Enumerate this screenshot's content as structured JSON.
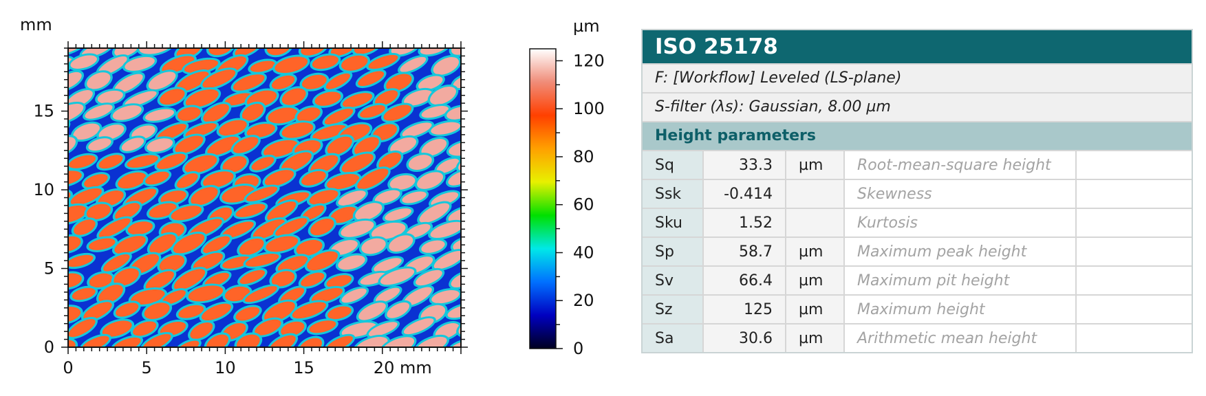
{
  "chart_data": {
    "type": "heatmap",
    "x_unit": "mm",
    "y_unit": "mm",
    "x_ticks": [
      0,
      5,
      10,
      15,
      20
    ],
    "x_tick_labels": [
      "0",
      "5",
      "10",
      "15",
      "20 mm"
    ],
    "y_ticks": [
      0,
      5,
      10,
      15
    ],
    "xlim": [
      0,
      25
    ],
    "ylim": [
      0,
      19
    ],
    "colorbar": {
      "unit": "µm",
      "range": [
        0,
        125
      ],
      "ticks": [
        0,
        20,
        40,
        60,
        80,
        100,
        120
      ],
      "colors": [
        "#000020",
        "#0000c0",
        "#0070ff",
        "#00e8e8",
        "#00e000",
        "#e8f000",
        "#ffa000",
        "#ff4000",
        "#f08c78",
        "#ffffff"
      ]
    },
    "colors": {
      "valley": "#0a32d2",
      "ridge": "#14c8dc",
      "plateau": "#ff6428",
      "highlight": "#f2aaa0"
    }
  },
  "panel": {
    "title": "ISO 25178",
    "filter_f": "F: [Workflow] Leveled (LS-plane)",
    "filter_s": "S-filter (λs): Gaussian, 8.00 µm",
    "section": "Height parameters",
    "rows": [
      {
        "name": "Sq",
        "value": "33.3",
        "unit": "µm",
        "desc": "Root-mean-square height"
      },
      {
        "name": "Ssk",
        "value": "-0.414",
        "unit": "",
        "desc": "Skewness"
      },
      {
        "name": "Sku",
        "value": "1.52",
        "unit": "",
        "desc": "Kurtosis"
      },
      {
        "name": "Sp",
        "value": "58.7",
        "unit": "µm",
        "desc": "Maximum peak height"
      },
      {
        "name": "Sv",
        "value": "66.4",
        "unit": "µm",
        "desc": "Maximum pit height"
      },
      {
        "name": "Sz",
        "value": "125",
        "unit": "µm",
        "desc": "Maximum height"
      },
      {
        "name": "Sa",
        "value": "30.6",
        "unit": "µm",
        "desc": "Arithmetic mean height"
      }
    ]
  }
}
